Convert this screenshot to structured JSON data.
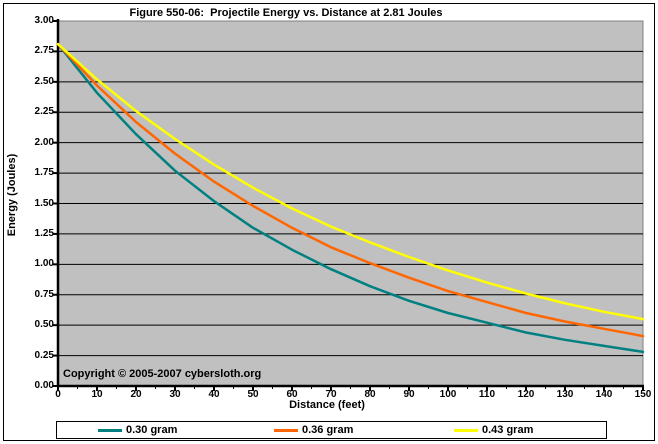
{
  "frame": {
    "border_color": "#000000",
    "background": "#FFFFFF"
  },
  "chart_data": {
    "type": "line",
    "title": "Figure 550-06:  Projectile Energy vs. Distance at 2.81 Joules",
    "xlabel": "Distance (feet)",
    "ylabel": "Energy (Joules)",
    "copyright": "Copyright © 2005-2007 cybersloth.org",
    "xlim": [
      0,
      150
    ],
    "ylim": [
      0.0,
      3.0
    ],
    "x_major_step": 10,
    "x_minor_step": 5,
    "y_step": 0.25,
    "grid": "horizontal-only",
    "plot_bg": "#C0C0C0",
    "plot_border": "#808080",
    "grid_color": "#000000",
    "axis_color": "#000000",
    "legend_position": "bottom",
    "x_tick_labels": [
      "0",
      "10",
      "20",
      "30",
      "40",
      "50",
      "60",
      "70",
      "80",
      "90",
      "100",
      "110",
      "120",
      "130",
      "140",
      "150"
    ],
    "y_tick_labels": [
      "0.00",
      "0.25",
      "0.50",
      "0.75",
      "1.00",
      "1.25",
      "1.50",
      "1.75",
      "2.00",
      "2.25",
      "2.50",
      "2.75",
      "3.00"
    ],
    "x": [
      0,
      10,
      20,
      30,
      40,
      50,
      60,
      70,
      80,
      90,
      100,
      110,
      120,
      130,
      140,
      150
    ],
    "series": [
      {
        "name": "0.30 gram",
        "color": "#008080",
        "values": [
          2.81,
          2.41,
          2.07,
          1.77,
          1.52,
          1.3,
          1.12,
          0.96,
          0.82,
          0.7,
          0.6,
          0.52,
          0.44,
          0.38,
          0.33,
          0.28
        ]
      },
      {
        "name": "0.36 gram",
        "color": "#FF6600",
        "values": [
          2.81,
          2.47,
          2.17,
          1.91,
          1.68,
          1.48,
          1.3,
          1.14,
          1.01,
          0.89,
          0.78,
          0.69,
          0.6,
          0.53,
          0.47,
          0.41
        ]
      },
      {
        "name": "0.43 gram",
        "color": "#FFFF00",
        "values": [
          2.81,
          2.52,
          2.26,
          2.03,
          1.82,
          1.63,
          1.46,
          1.31,
          1.18,
          1.06,
          0.95,
          0.85,
          0.76,
          0.68,
          0.61,
          0.55
        ]
      }
    ]
  }
}
